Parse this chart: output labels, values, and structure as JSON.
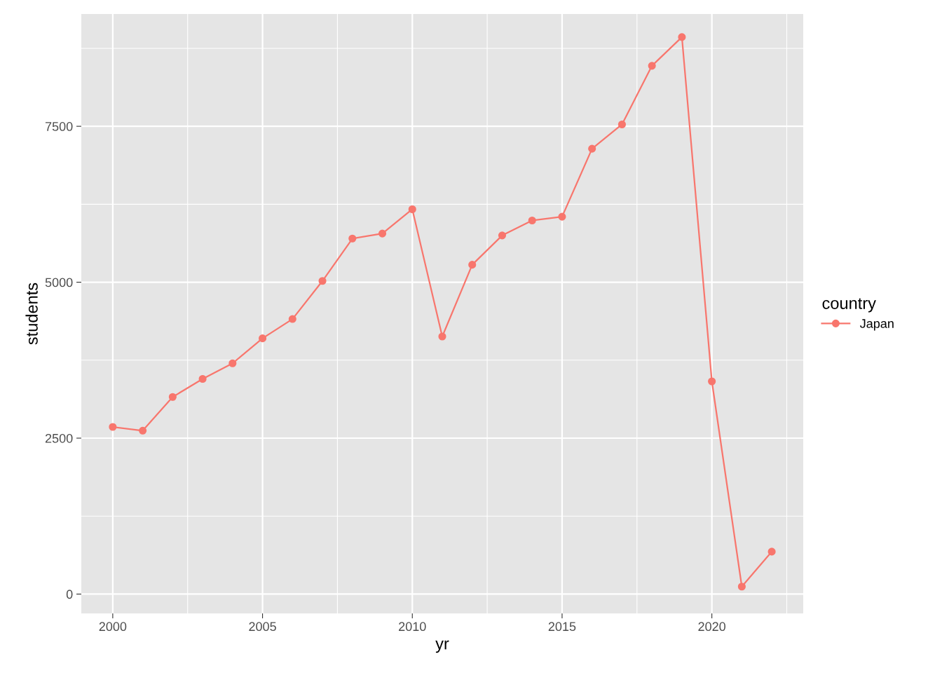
{
  "chart_data": {
    "type": "line",
    "xlabel": "yr",
    "ylabel": "students",
    "legend_title": "country",
    "legend": "right",
    "grid": true,
    "marker": "circle",
    "line_style": "solid",
    "x": [
      2000,
      2001,
      2002,
      2003,
      2004,
      2005,
      2006,
      2007,
      2008,
      2009,
      2010,
      2011,
      2012,
      2013,
      2014,
      2015,
      2016,
      2017,
      2018,
      2019,
      2020,
      2021,
      2022
    ],
    "series": [
      {
        "name": "Japan",
        "color": "#f8766d",
        "values": [
          2680,
          2620,
          3160,
          3450,
          3700,
          4100,
          4410,
          5020,
          5700,
          5780,
          6170,
          4130,
          5280,
          5750,
          5990,
          6050,
          7140,
          7530,
          8470,
          8930,
          3410,
          120,
          680
        ]
      }
    ],
    "xlim": [
      1998.95,
      2023.05
    ],
    "ylim": [
      -310,
      9300
    ],
    "xticks": [
      2000,
      2005,
      2010,
      2015,
      2020
    ],
    "yticks": [
      0,
      2500,
      5000,
      7500
    ]
  }
}
